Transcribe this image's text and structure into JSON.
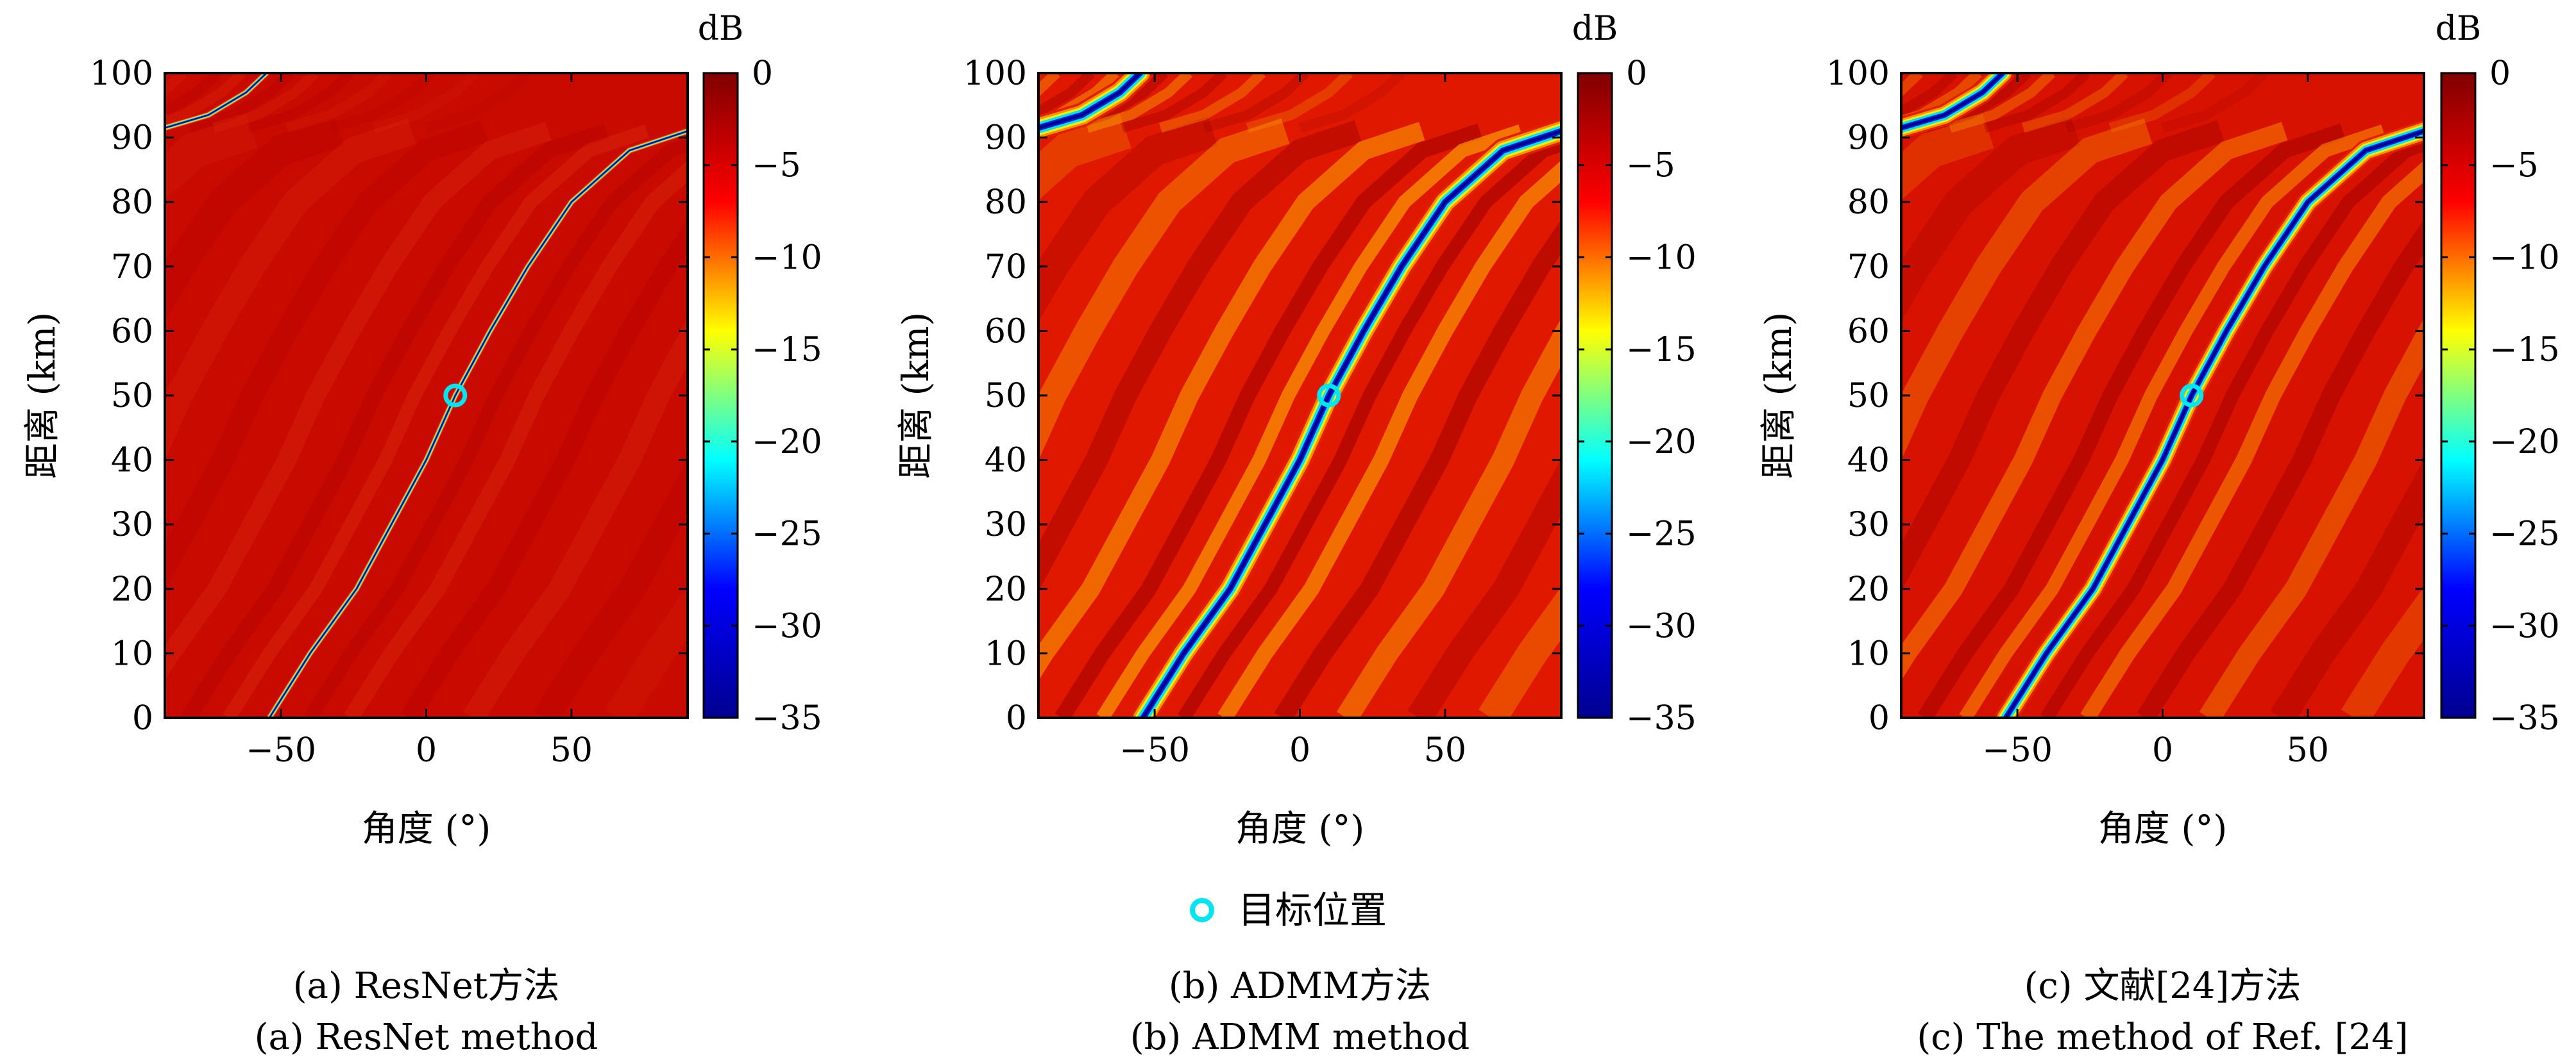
{
  "legend": {
    "label": "目标位置",
    "marker_color": "#00e5f0"
  },
  "colorbar": {
    "unit": "dB",
    "range": [
      -35,
      0
    ],
    "ticks": [
      "0",
      "−5",
      "−10",
      "−15",
      "−20",
      "−25",
      "−30",
      "−35"
    ],
    "tick_values": [
      0,
      -5,
      -10,
      -15,
      -20,
      -25,
      -30,
      -35
    ],
    "colormap": [
      "#00008f",
      "#0000ff",
      "#00ffff",
      "#ffff00",
      "#ff0000",
      "#800000"
    ]
  },
  "chart_data": [
    {
      "type": "heatmap",
      "id": "a",
      "caption_cn": "(a) ResNet方法",
      "caption_en": "(a) ResNet method",
      "xlabel": "角度 (°)",
      "ylabel": "距离 (km)",
      "xlim": [
        -90,
        90
      ],
      "ylim": [
        0,
        100
      ],
      "xticks": [
        -50,
        0,
        50
      ],
      "xtick_labels": [
        "−50",
        "0",
        "50"
      ],
      "yticks": [
        0,
        10,
        20,
        30,
        40,
        50,
        60,
        70,
        80,
        90,
        100
      ],
      "ytick_labels": [
        "0",
        "10",
        "20",
        "30",
        "40",
        "50",
        "60",
        "70",
        "80",
        "90",
        "100"
      ],
      "target": {
        "angle": 10,
        "range": 50
      },
      "null_curve": [
        [
          -54,
          0
        ],
        [
          -40,
          10
        ],
        [
          -24,
          20
        ],
        [
          -12,
          30
        ],
        [
          0,
          40
        ],
        [
          10,
          50
        ],
        [
          22,
          60
        ],
        [
          35,
          70
        ],
        [
          50,
          80
        ],
        [
          70,
          88
        ],
        [
          90,
          91
        ]
      ],
      "null_curve_upper": [
        [
          -90,
          91.5
        ],
        [
          -75,
          93.5
        ],
        [
          -62,
          97
        ],
        [
          -55,
          100
        ]
      ]
    },
    {
      "type": "heatmap",
      "id": "b",
      "caption_cn": "(b) ADMM方法",
      "caption_en": "(b) ADMM method",
      "xlabel": "角度 (°)",
      "ylabel": "距离 (km)",
      "xlim": [
        -90,
        90
      ],
      "ylim": [
        0,
        100
      ],
      "xticks": [
        -50,
        0,
        50
      ],
      "xtick_labels": [
        "−50",
        "0",
        "50"
      ],
      "yticks": [
        0,
        10,
        20,
        30,
        40,
        50,
        60,
        70,
        80,
        90,
        100
      ],
      "ytick_labels": [
        "0",
        "10",
        "20",
        "30",
        "40",
        "50",
        "60",
        "70",
        "80",
        "90",
        "100"
      ],
      "target": {
        "angle": 10,
        "range": 50
      },
      "null_curve": [
        [
          -54,
          0
        ],
        [
          -40,
          10
        ],
        [
          -24,
          20
        ],
        [
          -12,
          30
        ],
        [
          0,
          40
        ],
        [
          10,
          50
        ],
        [
          22,
          60
        ],
        [
          35,
          70
        ],
        [
          50,
          80
        ],
        [
          70,
          88
        ],
        [
          90,
          91
        ]
      ],
      "null_curve_upper": [
        [
          -90,
          91.5
        ],
        [
          -75,
          93.5
        ],
        [
          -62,
          97
        ],
        [
          -55,
          100
        ]
      ]
    },
    {
      "type": "heatmap",
      "id": "c",
      "caption_cn": "(c) 文献[24]方法",
      "caption_en": "(c) The method of Ref. [24]",
      "xlabel": "角度 (°)",
      "ylabel": "距离 (km)",
      "xlim": [
        -90,
        90
      ],
      "ylim": [
        0,
        100
      ],
      "xticks": [
        -50,
        0,
        50
      ],
      "xtick_labels": [
        "−50",
        "0",
        "50"
      ],
      "yticks": [
        0,
        10,
        20,
        30,
        40,
        50,
        60,
        70,
        80,
        90,
        100
      ],
      "ytick_labels": [
        "0",
        "10",
        "20",
        "30",
        "40",
        "50",
        "60",
        "70",
        "80",
        "90",
        "100"
      ],
      "target": {
        "angle": 10,
        "range": 50
      },
      "null_curve": [
        [
          -54,
          0
        ],
        [
          -40,
          10
        ],
        [
          -24,
          20
        ],
        [
          -12,
          30
        ],
        [
          0,
          40
        ],
        [
          10,
          50
        ],
        [
          22,
          60
        ],
        [
          35,
          70
        ],
        [
          50,
          80
        ],
        [
          70,
          88
        ],
        [
          90,
          91
        ]
      ],
      "null_curve_upper": [
        [
          -90,
          91.5
        ],
        [
          -75,
          93.5
        ],
        [
          -62,
          97
        ],
        [
          -55,
          100
        ]
      ]
    }
  ]
}
